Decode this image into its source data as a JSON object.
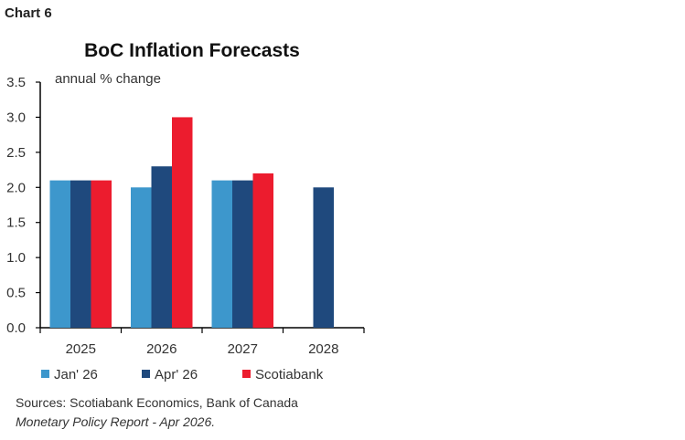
{
  "chart_label": "Chart 6",
  "chart_data": {
    "type": "bar",
    "title": "BoC Inflation Forecasts",
    "ylabel": "annual % change",
    "xlabel": "",
    "ylim": [
      0,
      3.5
    ],
    "yticks": [
      "0.0",
      "0.5",
      "1.0",
      "1.5",
      "2.0",
      "2.5",
      "3.0",
      "3.5"
    ],
    "categories": [
      "2025",
      "2026",
      "2027",
      "2028"
    ],
    "series": [
      {
        "name": "Jan' 26",
        "color": "#3d97cc",
        "values": [
          2.1,
          2.0,
          2.1,
          null
        ]
      },
      {
        "name": "Apr' 26",
        "color": "#1f497d",
        "values": [
          2.1,
          2.3,
          2.1,
          2.0
        ]
      },
      {
        "name": "Scotiabank",
        "color": "#ec1c2e",
        "values": [
          2.1,
          3.0,
          2.2,
          null
        ]
      }
    ],
    "grid": false,
    "legend": "bottom"
  },
  "sources": {
    "line1": "Sources: Scotiabank Economics, Bank of Canada",
    "line2": "Monetary Policy Report - Apr 2026."
  }
}
